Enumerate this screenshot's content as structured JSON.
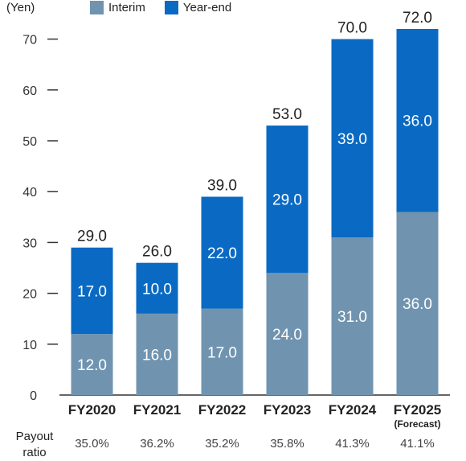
{
  "unit_label": "(Yen)",
  "payout_label_line1": "Payout",
  "payout_label_line2": "ratio",
  "colors": {
    "interim": "#7094b0",
    "year_end": "#0a6ac3",
    "axis": "#333333",
    "bar_label": "#ffffff",
    "total_label": "#222222"
  },
  "chart_data": {
    "type": "bar",
    "stacked": true,
    "categories": [
      "FY2020",
      "FY2021",
      "FY2022",
      "FY2023",
      "FY2024",
      "FY2025"
    ],
    "category_sublabels": [
      "",
      "",
      "",
      "",
      "",
      "(Forecast)"
    ],
    "series": [
      {
        "name": "Interim",
        "values": [
          12.0,
          16.0,
          17.0,
          24.0,
          31.0,
          36.0
        ]
      },
      {
        "name": "Year-end",
        "values": [
          17.0,
          10.0,
          22.0,
          29.0,
          39.0,
          36.0
        ]
      }
    ],
    "totals": [
      "29.0",
      "26.0",
      "39.0",
      "53.0",
      "70.0",
      "72.0"
    ],
    "value_labels": [
      [
        "12.0",
        "16.0",
        "17.0",
        "24.0",
        "31.0",
        "36.0"
      ],
      [
        "17.0",
        "10.0",
        "22.0",
        "29.0",
        "39.0",
        "36.0"
      ]
    ],
    "yticks": [
      0,
      10,
      20,
      30,
      40,
      50,
      60,
      70
    ],
    "ylim": [
      0,
      77
    ],
    "legend_position": "top",
    "grid": false
  },
  "payout_ratios": [
    "35.0%",
    "36.2%",
    "35.2%",
    "35.8%",
    "41.3%",
    "41.1%"
  ]
}
